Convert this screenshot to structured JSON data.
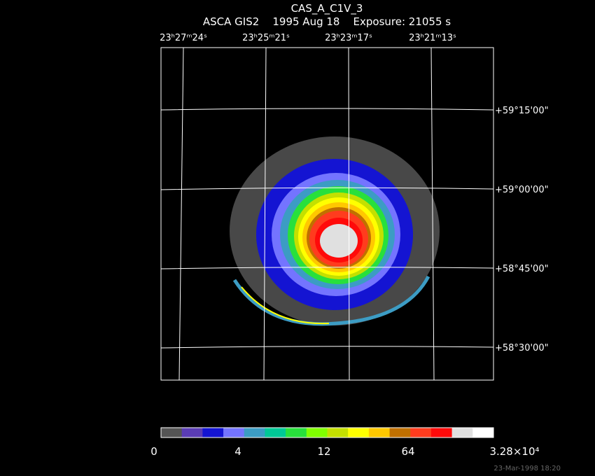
{
  "header": {
    "title": "CAS_A_C1V_3",
    "subtitle": "ASCA GIS2    1995 Aug 18    Exposure: 21055 s"
  },
  "ra_labels": [
    "23ʰ27ᵐ24ˢ",
    "23ʰ25ᵐ21ˢ",
    "23ʰ23ᵐ17ˢ",
    "23ʰ21ᵐ13ˢ"
  ],
  "dec_labels": [
    "+59°15'00\"",
    "+59°00'00\"",
    "+58°45'00\"",
    "+58°30'00\""
  ],
  "colorbar": {
    "colors": [
      "#555555",
      "#5a3cb4",
      "#1414d2",
      "#7474ff",
      "#3c9cc4",
      "#00c896",
      "#28e03c",
      "#80ff00",
      "#c4e000",
      "#ffff00",
      "#ffc800",
      "#c07000",
      "#ff3c1e",
      "#ff0a0a",
      "#e0e0e0",
      "#ffffff"
    ],
    "labels": [
      "0",
      "4",
      "12",
      "64",
      "3.28×10⁴"
    ]
  },
  "footer": "23-Mar-1998 18:20"
}
